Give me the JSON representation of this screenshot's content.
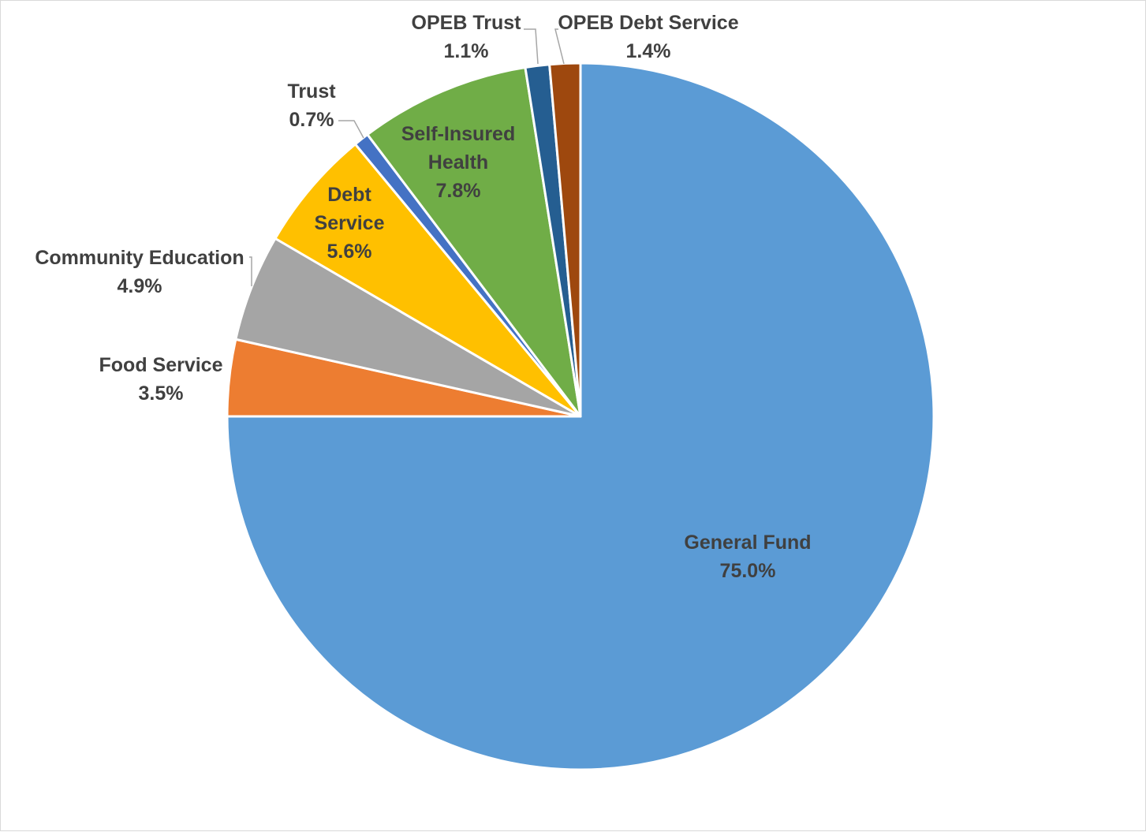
{
  "chart_data": {
    "type": "pie",
    "title": "",
    "start_angle_deg": 0,
    "direction": "clockwise",
    "slices": [
      {
        "label": "General Fund",
        "value": 75.0,
        "value_label": "75.0%",
        "color": "#5B9BD5"
      },
      {
        "label": "Food Service",
        "value": 3.5,
        "value_label": "3.5%",
        "color": "#ED7D31"
      },
      {
        "label": "Community Education",
        "value": 4.9,
        "value_label": "4.9%",
        "color": "#A5A5A5"
      },
      {
        "label": "Debt Service",
        "value": 5.6,
        "value_label": "5.6%",
        "color": "#FFC000",
        "label_lines": [
          "Debt",
          "Service"
        ]
      },
      {
        "label": "Trust",
        "value": 0.7,
        "value_label": "0.7%",
        "color": "#4472C4"
      },
      {
        "label": "Self-Insured Health",
        "value": 7.8,
        "value_label": "7.8%",
        "color": "#70AD47",
        "label_lines": [
          "Self-Insured",
          "Health"
        ]
      },
      {
        "label": "OPEB Trust",
        "value": 1.1,
        "value_label": "1.1%",
        "color": "#255E91"
      },
      {
        "label": "OPEB Debt Service",
        "value": 1.4,
        "value_label": "1.4%",
        "color": "#9E480E"
      }
    ]
  }
}
